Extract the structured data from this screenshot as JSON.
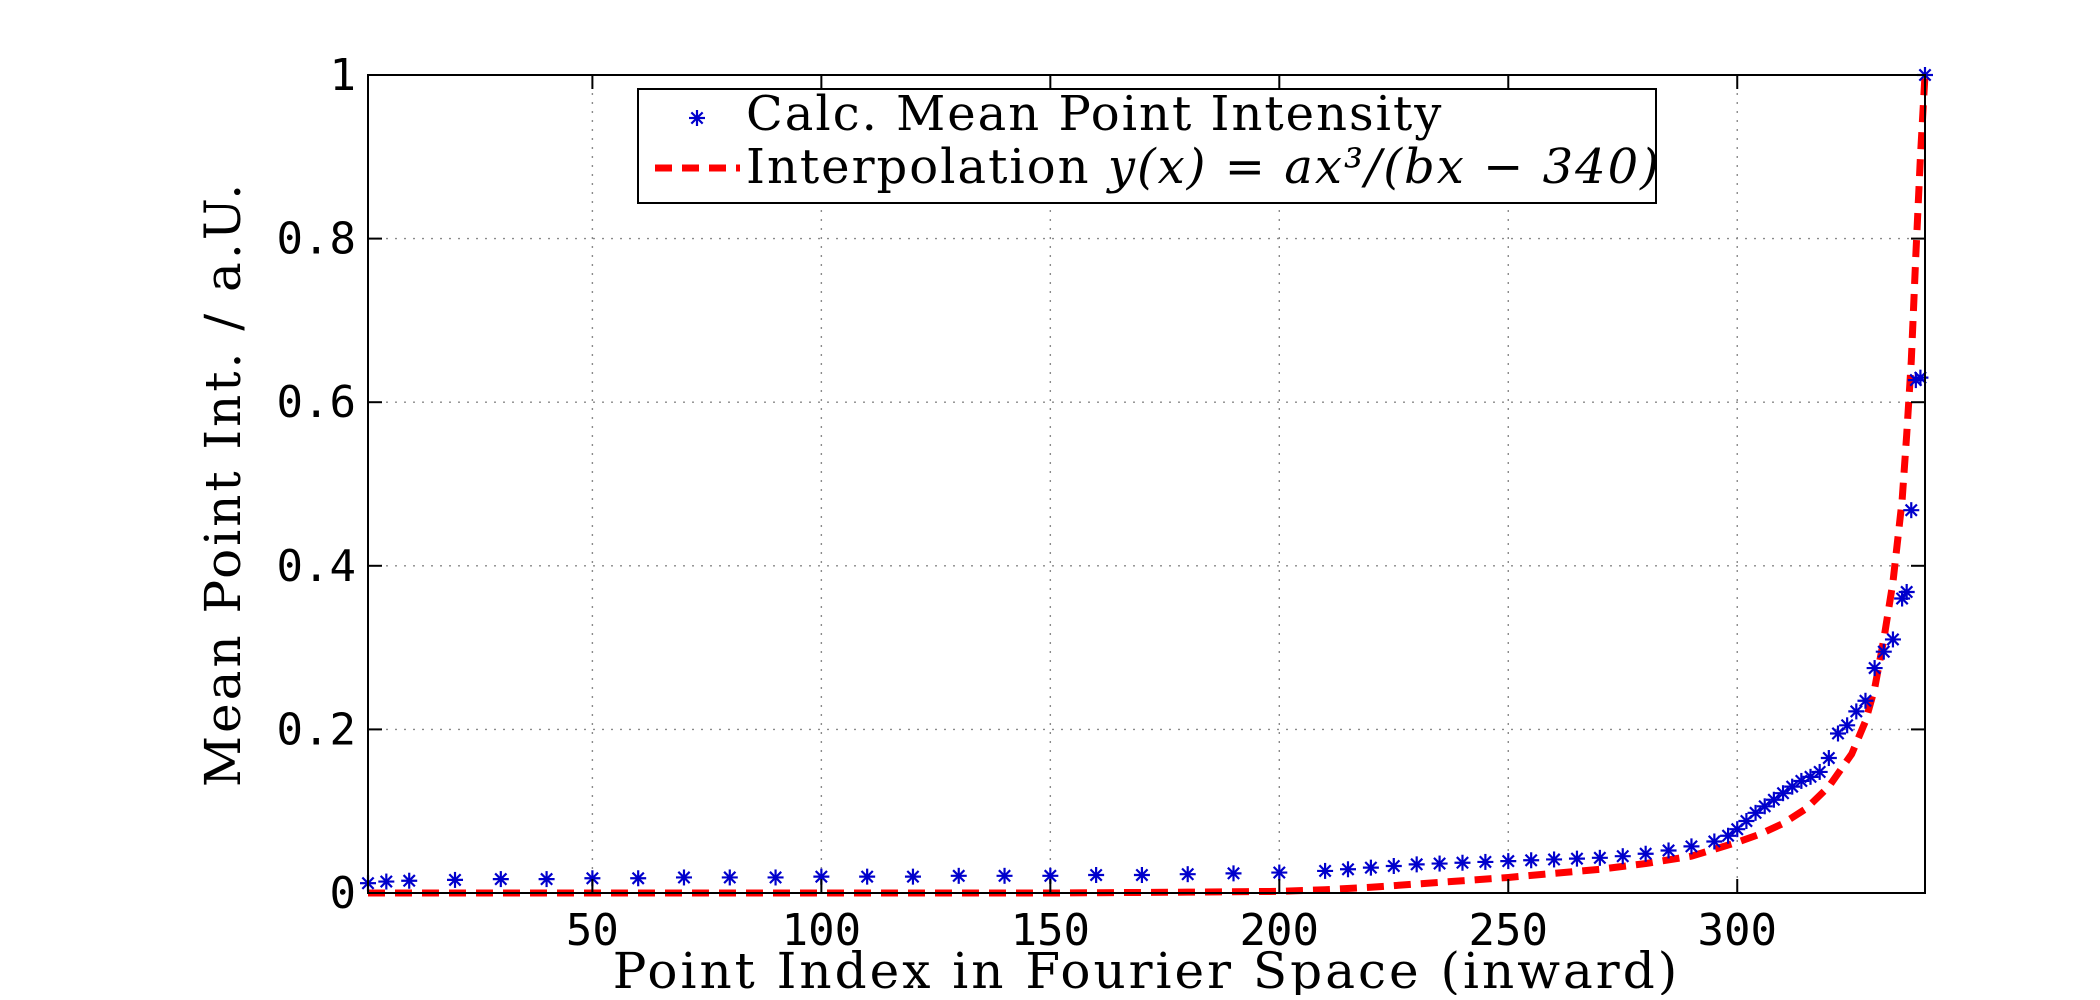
{
  "chart_data": {
    "type": "line",
    "title": "",
    "xlabel": "Point Index in Fourier Space (inward)",
    "ylabel": "Mean Point Int. / a.U.",
    "xlim": [
      1,
      341
    ],
    "ylim": [
      0,
      1
    ],
    "grid": true,
    "legend_position": "top-center",
    "x_ticks": [
      50,
      100,
      150,
      200,
      250,
      300
    ],
    "x_tick_labels": [
      "50",
      "100",
      "150",
      "200",
      "250",
      "300"
    ],
    "y_ticks": [
      0,
      0.2,
      0.4,
      0.6,
      0.8,
      1
    ],
    "y_tick_labels": [
      "0",
      "0.2",
      "0.4",
      "0.6",
      "0.8",
      "1"
    ],
    "series": [
      {
        "name": "Calc. Mean Point Intensity",
        "style": "markers",
        "marker": "asterisk",
        "color": "#0000cc",
        "x": [
          1,
          5,
          10,
          20,
          30,
          40,
          50,
          60,
          70,
          80,
          90,
          100,
          110,
          120,
          130,
          140,
          150,
          160,
          170,
          180,
          190,
          200,
          210,
          215,
          220,
          225,
          230,
          235,
          240,
          245,
          250,
          255,
          260,
          265,
          270,
          275,
          280,
          285,
          290,
          295,
          298,
          300,
          302,
          304,
          306,
          308,
          310,
          312,
          314,
          316,
          318,
          320,
          322,
          324,
          326,
          328,
          330,
          332,
          334,
          336,
          337,
          338,
          339,
          340,
          341
        ],
        "y": [
          0.012,
          0.014,
          0.015,
          0.016,
          0.017,
          0.017,
          0.018,
          0.018,
          0.019,
          0.019,
          0.019,
          0.02,
          0.02,
          0.02,
          0.021,
          0.021,
          0.021,
          0.022,
          0.022,
          0.023,
          0.024,
          0.025,
          0.027,
          0.029,
          0.031,
          0.033,
          0.035,
          0.036,
          0.037,
          0.038,
          0.039,
          0.04,
          0.041,
          0.042,
          0.043,
          0.045,
          0.048,
          0.052,
          0.057,
          0.063,
          0.07,
          0.078,
          0.088,
          0.098,
          0.106,
          0.114,
          0.122,
          0.13,
          0.137,
          0.142,
          0.148,
          0.165,
          0.195,
          0.205,
          0.222,
          0.235,
          0.275,
          0.295,
          0.31,
          0.36,
          0.368,
          0.468,
          0.627,
          0.63,
          1.0
        ]
      },
      {
        "name": "Interpolation y(x) = ax³/(bx − 340)",
        "style": "dashed-line",
        "color": "#ff0000",
        "x": [
          1,
          50,
          100,
          150,
          180,
          200,
          210,
          220,
          230,
          240,
          250,
          260,
          270,
          280,
          290,
          300,
          305,
          310,
          315,
          320,
          325,
          328,
          330,
          332,
          334,
          336,
          337,
          338,
          339,
          340,
          341
        ],
        "y": [
          0.0,
          0.0,
          0.0,
          0.0,
          0.001,
          0.002,
          0.004,
          0.007,
          0.011,
          0.015,
          0.019,
          0.024,
          0.029,
          0.036,
          0.045,
          0.062,
          0.072,
          0.085,
          0.103,
          0.13,
          0.17,
          0.21,
          0.25,
          0.31,
          0.38,
          0.48,
          0.56,
          0.65,
          0.78,
          0.9,
          1.0
        ]
      }
    ]
  },
  "legend": {
    "entries": [
      {
        "label": "Calc. Mean Point Intensity"
      },
      {
        "label_prefix": "Interpolation ",
        "formula": "y(x) = ax³/(bx − 340)"
      }
    ]
  }
}
